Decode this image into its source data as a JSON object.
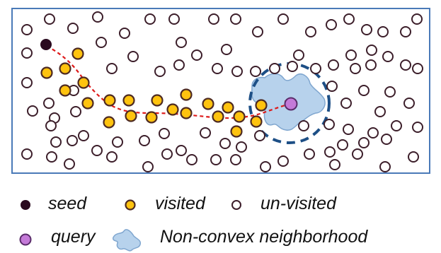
{
  "colors": {
    "frame": "#4a7ab8",
    "seed": "#2a0a1f",
    "visited_fill": "#ffc30f",
    "visited_stroke": "#4d2a22",
    "unvisited_stroke": "#3c1e2a",
    "query_fill": "#c47ad8",
    "query_stroke": "#5a2c6a",
    "neighborhood_fill": "#b7d2ec",
    "neighborhood_stroke": "#7fa6cf",
    "search_path": "#dd1a1a",
    "ring": "#1d4f86"
  },
  "legend": {
    "seed_label": "seed",
    "visited_label": "visited",
    "unvisited_label": "un-visited",
    "query_label": "query",
    "neighborhood_label": "Non-convex neighborhood"
  },
  "legend_icons": {
    "seed": "filled-dark-circle-icon",
    "visited": "filled-yellow-circle-icon",
    "unvisited": "hollow-circle-icon",
    "query": "filled-purple-circle-icon",
    "neighborhood": "blob-shape-icon"
  }
}
